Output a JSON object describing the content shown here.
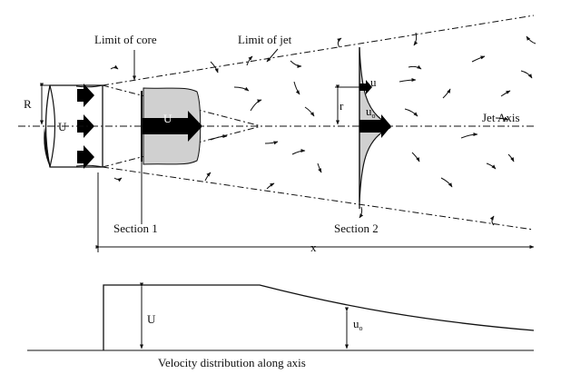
{
  "labels": {
    "limit_of_core": "Limit of core",
    "limit_of_jet": "Limit of jet",
    "radius": "R",
    "nozzle_velocity": "U",
    "core_velocity": "U",
    "local_velocity": "u",
    "centerline_velocity": "u",
    "centerline_subscript": "o",
    "radial_position": "r",
    "jet_axis": "Jet Axis",
    "section_1": "Section 1",
    "section_2": "Section 2",
    "axial_distance": "x",
    "plot_core_velocity": "U",
    "plot_centerline_velocity": "u",
    "plot_centerline_subscript": "o",
    "caption": "Velocity distribution along axis"
  },
  "colors": {
    "line": "#111111",
    "fill_gray": "#d0d0d0",
    "arrow_black": "#000000"
  }
}
